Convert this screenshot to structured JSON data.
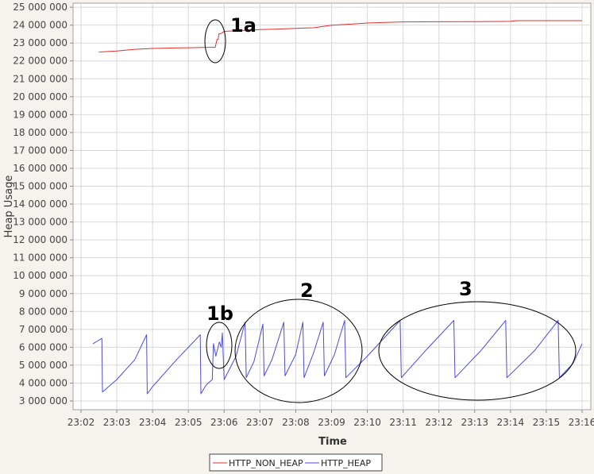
{
  "chart_data": {
    "type": "line",
    "xlabel": "Time",
    "ylabel": "Heap Usage",
    "xlim": [
      "23:02",
      "23:16"
    ],
    "ylim": [
      2500000,
      25000000
    ],
    "x_ticks": [
      "23:02",
      "23:03",
      "23:04",
      "23:05",
      "23:06",
      "23:07",
      "23:08",
      "23:09",
      "23:10",
      "23:11",
      "23:12",
      "23:13",
      "23:14",
      "23:15",
      "23:16"
    ],
    "y_ticks": [
      3000000,
      4000000,
      5000000,
      6000000,
      7000000,
      8000000,
      9000000,
      10000000,
      11000000,
      12000000,
      13000000,
      14000000,
      15000000,
      16000000,
      17000000,
      18000000,
      19000000,
      20000000,
      21000000,
      22000000,
      23000000,
      24000000,
      25000000
    ],
    "y_tick_labels": [
      "3 000 000",
      "4 000 000",
      "5 000 000",
      "6 000 000",
      "7 000 000",
      "8 000 000",
      "9 000 000",
      "10 000 000",
      "11 000 000",
      "12 000 000",
      "13 000 000",
      "14 000 000",
      "15 000 000",
      "16 000 000",
      "17 000 000",
      "18 000 000",
      "19 000 000",
      "20 000 000",
      "21 000 000",
      "22 000 000",
      "23 000 000",
      "24 000 000",
      "25 000 000"
    ],
    "grid": true,
    "legend": "bottom",
    "series": [
      {
        "name": "HTTP_NON_HEAP",
        "color": "#e03030",
        "points": [
          [
            "23:02:30",
            22500000
          ],
          [
            "23:03:00",
            22550000
          ],
          [
            "23:03:30",
            22650000
          ],
          [
            "23:04:00",
            22700000
          ],
          [
            "23:04:30",
            22720000
          ],
          [
            "23:05:00",
            22740000
          ],
          [
            "23:05:30",
            22760000
          ],
          [
            "23:05:45",
            22760000
          ],
          [
            "23:05:48",
            23200000
          ],
          [
            "23:05:50",
            23200000
          ],
          [
            "23:05:51",
            23500000
          ],
          [
            "23:05:56",
            23550000
          ],
          [
            "23:06:00",
            23650000
          ],
          [
            "23:06:30",
            23700000
          ],
          [
            "23:07:00",
            23750000
          ],
          [
            "23:07:30",
            23780000
          ],
          [
            "23:08:00",
            23820000
          ],
          [
            "23:08:30",
            23850000
          ],
          [
            "23:09:00",
            24000000
          ],
          [
            "23:09:30",
            24050000
          ],
          [
            "23:10:00",
            24120000
          ],
          [
            "23:10:30",
            24150000
          ],
          [
            "23:11:00",
            24180000
          ],
          [
            "23:12:00",
            24190000
          ],
          [
            "23:13:00",
            24200000
          ],
          [
            "23:14:00",
            24210000
          ],
          [
            "23:14:10",
            24250000
          ],
          [
            "23:15:00",
            24250000
          ],
          [
            "23:16:00",
            24250000
          ]
        ]
      },
      {
        "name": "HTTP_HEAP",
        "color": "#4a4ae8",
        "points": [
          [
            "23:02:20",
            6200000
          ],
          [
            "23:02:35",
            6500000
          ],
          [
            "23:02:36",
            3500000
          ],
          [
            "23:03:00",
            4200000
          ],
          [
            "23:03:30",
            5300000
          ],
          [
            "23:03:50",
            6700000
          ],
          [
            "23:03:51",
            3400000
          ],
          [
            "23:04:00",
            3800000
          ],
          [
            "23:04:40",
            5300000
          ],
          [
            "23:05:20",
            6700000
          ],
          [
            "23:05:21",
            3400000
          ],
          [
            "23:05:30",
            3900000
          ],
          [
            "23:05:40",
            4200000
          ],
          [
            "23:05:42",
            6200000
          ],
          [
            "23:05:46",
            5500000
          ],
          [
            "23:05:52",
            6300000
          ],
          [
            "23:05:55",
            6000000
          ],
          [
            "23:05:57",
            6800000
          ],
          [
            "23:06:00",
            4200000
          ],
          [
            "23:06:20",
            5500000
          ],
          [
            "23:06:35",
            7400000
          ],
          [
            "23:06:37",
            4300000
          ],
          [
            "23:06:50",
            5200000
          ],
          [
            "23:07:05",
            7300000
          ],
          [
            "23:07:07",
            4400000
          ],
          [
            "23:07:20",
            5300000
          ],
          [
            "23:07:40",
            7400000
          ],
          [
            "23:07:42",
            4400000
          ],
          [
            "23:08:00",
            5600000
          ],
          [
            "23:08:12",
            7400000
          ],
          [
            "23:08:14",
            4300000
          ],
          [
            "23:08:30",
            5700000
          ],
          [
            "23:08:46",
            7400000
          ],
          [
            "23:08:48",
            4400000
          ],
          [
            "23:09:05",
            5600000
          ],
          [
            "23:09:22",
            7500000
          ],
          [
            "23:09:24",
            4300000
          ],
          [
            "23:10:00",
            5500000
          ],
          [
            "23:10:55",
            7500000
          ],
          [
            "23:10:57",
            4300000
          ],
          [
            "23:11:40",
            5900000
          ],
          [
            "23:12:25",
            7500000
          ],
          [
            "23:12:27",
            4300000
          ],
          [
            "23:13:10",
            5800000
          ],
          [
            "23:13:52",
            7500000
          ],
          [
            "23:13:54",
            4300000
          ],
          [
            "23:14:40",
            5800000
          ],
          [
            "23:15:20",
            7500000
          ],
          [
            "23:15:22",
            4300000
          ],
          [
            "23:15:45",
            5100000
          ],
          [
            "23:16:00",
            6200000
          ]
        ]
      }
    ],
    "annotations": [
      {
        "label": "1a",
        "at": "23:05:50",
        "y": 23100000
      },
      {
        "label": "1b",
        "at": "23:05:50",
        "y": 6000000
      },
      {
        "label": "2",
        "at": "23:08:00",
        "y": 5800000
      },
      {
        "label": "3",
        "at": "23:13:00",
        "y": 5750000
      }
    ]
  }
}
